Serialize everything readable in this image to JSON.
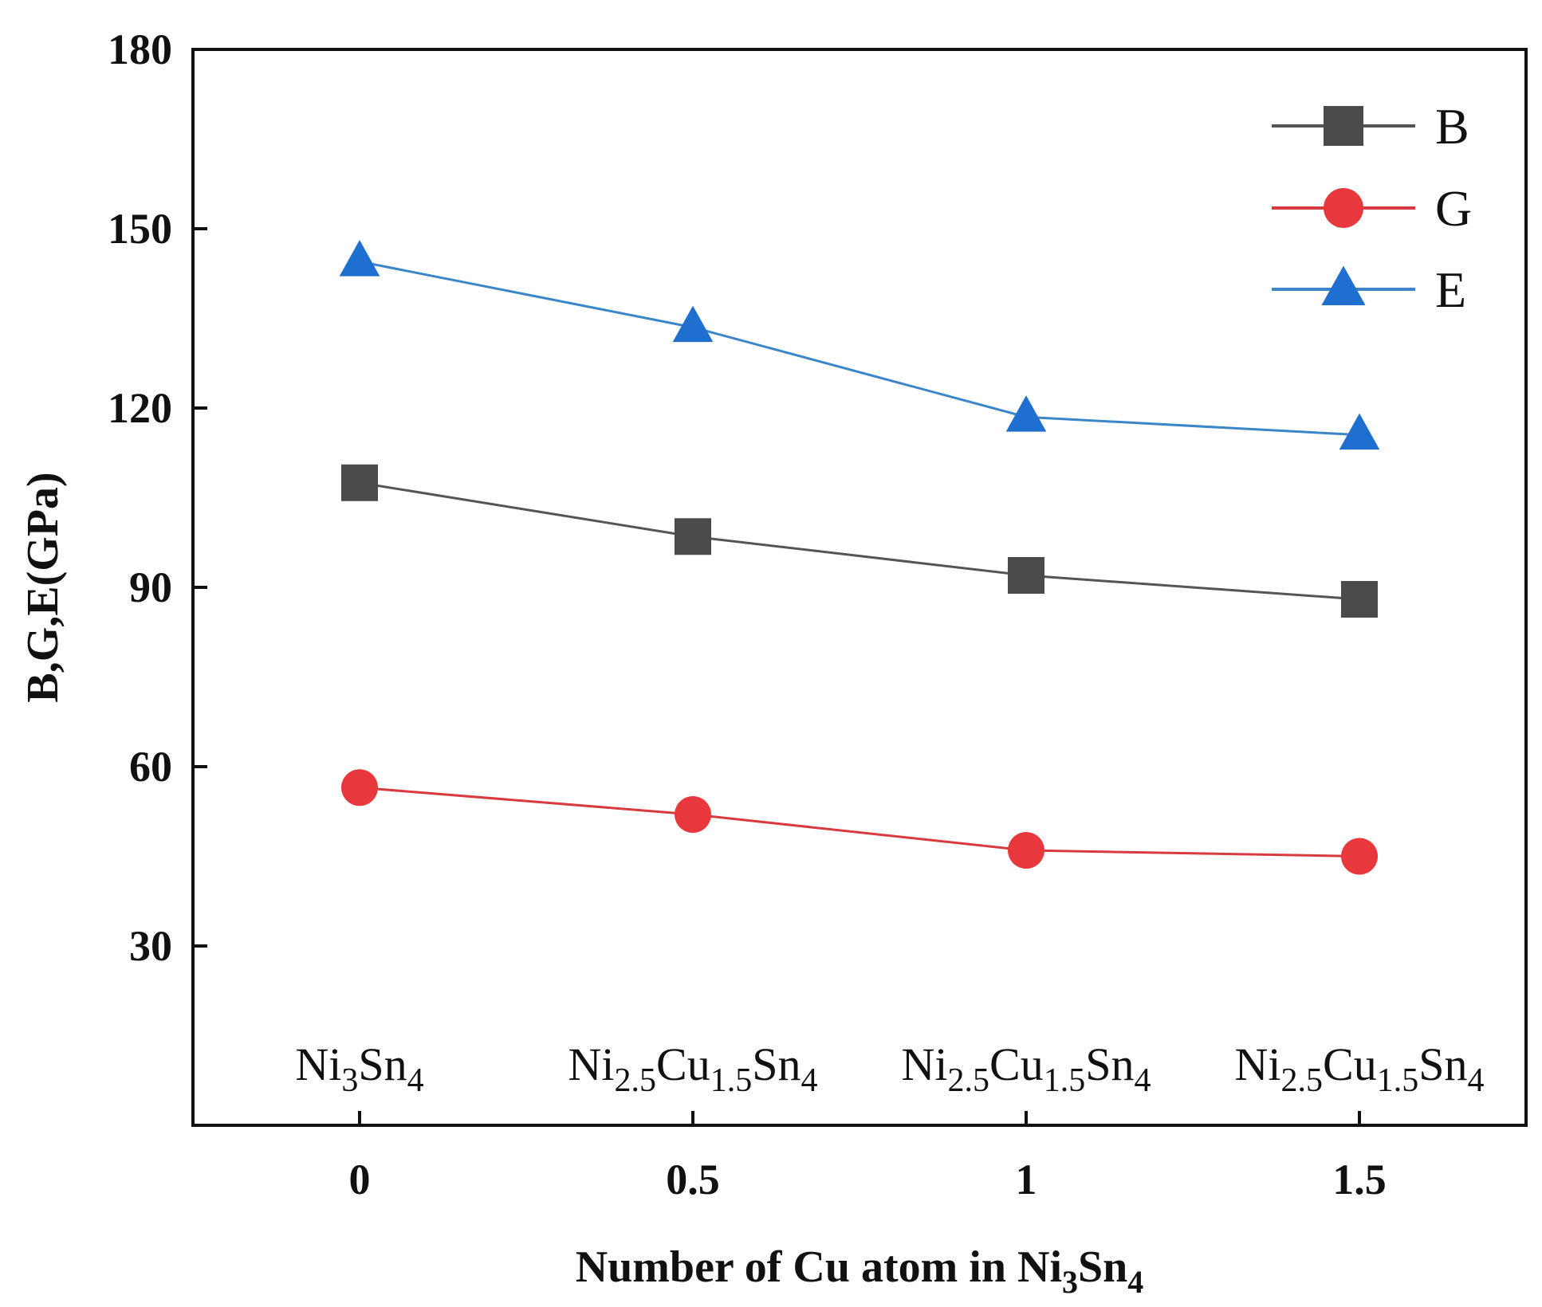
{
  "chart_data": {
    "type": "line",
    "title": "",
    "xlabel_parts": [
      {
        "text": "Number of Cu atom in Ni",
        "sub": false
      },
      {
        "text": "3",
        "sub": true
      },
      {
        "text": "Sn",
        "sub": false
      },
      {
        "text": "4",
        "sub": true
      }
    ],
    "ylabel": "B,G,E(GPa)",
    "x": [
      0,
      0.5,
      1,
      1.5
    ],
    "x_tick_labels": [
      "0",
      "0.5",
      "1",
      "1.5"
    ],
    "xlim": [
      -0.25,
      1.75
    ],
    "ylim": [
      0,
      180
    ],
    "y_ticks": [
      30,
      60,
      90,
      120,
      150,
      180
    ],
    "y_tick_labels": [
      "30",
      "60",
      "90",
      "120",
      "150",
      "180"
    ],
    "grid": false,
    "legend_position": "top-right",
    "series": [
      {
        "name": "B",
        "marker": "square",
        "color": "#4a4a4a",
        "line_color": "#555555",
        "values": [
          107.5,
          98.5,
          92,
          88
        ]
      },
      {
        "name": "G",
        "marker": "circle",
        "color": "#e8383d",
        "line_color": "#d83a3e",
        "values": [
          56.5,
          52,
          46,
          45
        ]
      },
      {
        "name": "E",
        "marker": "triangle",
        "color": "#1f6fd1",
        "line_color": "#3a86c8",
        "values": [
          144.5,
          133.5,
          118.5,
          115.5
        ]
      }
    ],
    "composition_labels": [
      [
        {
          "text": "Ni",
          "sub": false
        },
        {
          "text": "3",
          "sub": true
        },
        {
          "text": "Sn",
          "sub": false
        },
        {
          "text": "4",
          "sub": true
        }
      ],
      [
        {
          "text": "Ni",
          "sub": false
        },
        {
          "text": "2.5",
          "sub": true
        },
        {
          "text": "Cu",
          "sub": false
        },
        {
          "text": "1.5",
          "sub": true
        },
        {
          "text": "Sn",
          "sub": false
        },
        {
          "text": "4",
          "sub": true
        }
      ],
      [
        {
          "text": "Ni",
          "sub": false
        },
        {
          "text": "2.5",
          "sub": true
        },
        {
          "text": "Cu",
          "sub": false
        },
        {
          "text": "1.5",
          "sub": true
        },
        {
          "text": "Sn",
          "sub": false
        },
        {
          "text": "4",
          "sub": true
        }
      ],
      [
        {
          "text": "Ni",
          "sub": false
        },
        {
          "text": "2.5",
          "sub": true
        },
        {
          "text": "Cu",
          "sub": false
        },
        {
          "text": "1.5",
          "sub": true
        },
        {
          "text": "Sn",
          "sub": false
        },
        {
          "text": "4",
          "sub": true
        }
      ]
    ]
  }
}
